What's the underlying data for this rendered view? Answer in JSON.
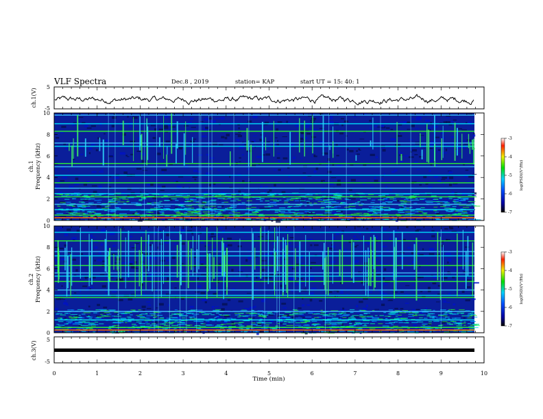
{
  "header": {
    "title": "VLF Spectra",
    "date": "Dec.8 , 2019",
    "station": "station= KAP",
    "start_time": "start UT = 15: 40: 1"
  },
  "colors": {
    "trace": "#000000",
    "spectrogram_background": "#0a1e9a"
  },
  "chart_data": [
    {
      "type": "line",
      "name": "ch1-waveform",
      "ylabel": "ch.1(V)",
      "ylim": [
        -5,
        5
      ],
      "yticks": [
        "5",
        "-5"
      ],
      "xlim": [
        0,
        10
      ],
      "description_of_signal": "noisy waveform around -1 V, fluctuating between about -3 and 2 V"
    },
    {
      "type": "heatmap",
      "name": "ch1-spectrogram",
      "ylabel": "ch.1\nFrequency (kHz)",
      "ylabel_lines": [
        "ch.1",
        "Frequency (kHz)"
      ],
      "ylim": [
        0,
        10
      ],
      "yticks": [
        "0",
        "2",
        "4",
        "6",
        "8",
        "10"
      ],
      "xlim": [
        0,
        10
      ],
      "colorbar": {
        "label": "log(PSD)(V²/Hz)",
        "range": [
          -7,
          -3
        ],
        "ticks": [
          "-3",
          "-4",
          "-5",
          "-6",
          "-7"
        ]
      },
      "bands_khz": [
        0.5,
        1.0,
        1.5,
        2.2,
        2.5,
        3.0,
        3.5,
        4.2,
        5.0,
        5.3,
        6.9,
        7.2,
        8.3,
        9.0,
        9.8
      ]
    },
    {
      "type": "heatmap",
      "name": "ch2-spectrogram",
      "ylabel_lines": [
        "ch.2",
        "Frequency (kHz)"
      ],
      "ylim": [
        0,
        10
      ],
      "yticks": [
        "0",
        "2",
        "4",
        "6",
        "8",
        "10"
      ],
      "xlim": [
        0,
        10
      ],
      "colorbar": {
        "label": "log(PSD)(V²/Hz)",
        "range": [
          -7,
          -3
        ],
        "ticks": [
          "-3",
          "-4",
          "-5",
          "-6",
          "-7"
        ]
      },
      "bands_khz": [
        0.5,
        1.2,
        2.0,
        3.3,
        3.5,
        4.0,
        4.8,
        5.3,
        5.6,
        6.3,
        7.2,
        7.6,
        8.6,
        9.4
      ]
    },
    {
      "type": "line",
      "name": "ch3-waveform",
      "ylabel": "ch.3(V)",
      "ylim": [
        -5,
        5
      ],
      "yticks": [
        "5",
        "-5"
      ],
      "xlim": [
        0,
        10
      ],
      "constant_value": 0
    }
  ],
  "x_axis": {
    "label": "Time (min)",
    "ticks": [
      "0",
      "1",
      "2",
      "3",
      "4",
      "5",
      "6",
      "7",
      "8",
      "9",
      "10"
    ]
  }
}
